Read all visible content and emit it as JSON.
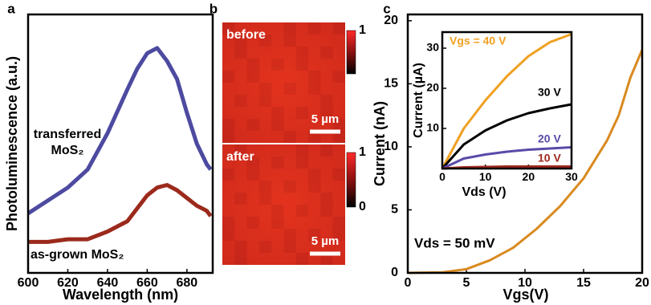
{
  "chart_data": [
    {
      "type": "line",
      "panel": "a",
      "xlabel": "Wavelength (nm)",
      "ylabel": "Photoluminescence (a.u.)",
      "x": [
        600,
        610,
        620,
        630,
        640,
        650,
        655,
        660,
        665,
        670,
        675,
        680,
        685,
        690,
        692
      ],
      "xlim": [
        600,
        693
      ],
      "xticks": [
        600,
        620,
        640,
        660,
        680
      ],
      "ylim": [
        0,
        1
      ],
      "series": [
        {
          "name": "transferred MoS₂",
          "color": "#4d4aa0",
          "values": [
            0.23,
            0.28,
            0.33,
            0.4,
            0.54,
            0.71,
            0.79,
            0.85,
            0.87,
            0.82,
            0.75,
            0.62,
            0.5,
            0.42,
            0.4
          ]
        },
        {
          "name": "as-grown MoS₂",
          "color": "#9b2a1c",
          "values": [
            0.12,
            0.12,
            0.13,
            0.13,
            0.16,
            0.2,
            0.25,
            0.3,
            0.33,
            0.34,
            0.32,
            0.29,
            0.26,
            0.24,
            0.22
          ]
        }
      ]
    },
    {
      "type": "line",
      "panel": "c",
      "xlabel": "Vgs(V)",
      "ylabel": "Current (nA)",
      "annotation": "Vds = 50 mV",
      "x": [
        0,
        3,
        5,
        7,
        9,
        11,
        13,
        15,
        17,
        18,
        19,
        20
      ],
      "xlim": [
        0,
        20
      ],
      "xticks": [
        0,
        5,
        10,
        15,
        20
      ],
      "ylim": [
        0,
        20.5
      ],
      "yticks": [
        0,
        5,
        10,
        15,
        20
      ],
      "series": [
        {
          "color": "#d98a20",
          "values": [
            0,
            0.05,
            0.3,
            1.0,
            2.0,
            3.5,
            5.3,
            7.5,
            10.5,
            12.5,
            15.5,
            17.7
          ]
        }
      ]
    },
    {
      "type": "line",
      "inset": true,
      "xlabel": "Vds (V)",
      "ylabel": "Current (µA)",
      "x": [
        0,
        5,
        10,
        15,
        20,
        25,
        30
      ],
      "xlim": [
        0,
        30
      ],
      "xticks": [
        0,
        10,
        20,
        30
      ],
      "ylim": [
        0,
        34
      ],
      "yticks": [
        10,
        20,
        30
      ],
      "series": [
        {
          "name": "Vgs = 40 V",
          "color": "#f0a020",
          "values": [
            0,
            10,
            17,
            23,
            28,
            31.5,
            33.5
          ]
        },
        {
          "name": "30 V",
          "color": "#000000",
          "values": [
            0,
            6,
            9.5,
            12,
            13.8,
            15,
            16
          ]
        },
        {
          "name": "20 V",
          "color": "#5a4aa8",
          "values": [
            0,
            2.5,
            3.5,
            4.2,
            4.7,
            5.0,
            5.3
          ]
        },
        {
          "name": "10 V",
          "color": "#a0281e",
          "values": [
            0,
            0.3,
            0.4,
            0.5,
            0.5,
            0.5,
            0.5
          ]
        }
      ]
    }
  ],
  "panel_b": {
    "panel": "b",
    "images": [
      {
        "label": "before",
        "scalebar": "5 µm",
        "colorbar_ticks": [
          1
        ]
      },
      {
        "label": "after",
        "scalebar": "5 µm",
        "colorbar_ticks": [
          1,
          0
        ]
      }
    ]
  }
}
